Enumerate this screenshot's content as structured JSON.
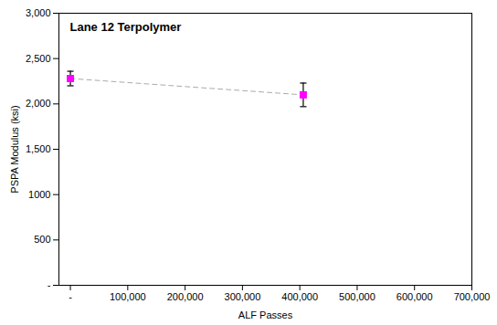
{
  "chart_data": {
    "type": "line",
    "title": "Lane 12 Terpolymer",
    "xlabel": "ALF Passes",
    "ylabel": "PSPA Modulus (ksi)",
    "x": [
      0,
      406000
    ],
    "values": [
      2280,
      2100
    ],
    "errors": [
      80,
      130
    ],
    "color": "#FF00FF",
    "marker": "square",
    "line_style": "dashed",
    "xlim": [
      -20000,
      700000
    ],
    "ylim": [
      0,
      3000
    ],
    "xticks": [
      {
        "value": 0,
        "label": "-"
      },
      {
        "value": 100000,
        "label": "100,000"
      },
      {
        "value": 200000,
        "label": "200,000"
      },
      {
        "value": 300000,
        "label": "300,000"
      },
      {
        "value": 400000,
        "label": "400,000"
      },
      {
        "value": 500000,
        "label": "500,000"
      },
      {
        "value": 600000,
        "label": "600,000"
      },
      {
        "value": 700000,
        "label": "700,000"
      }
    ],
    "yticks": [
      {
        "value": 0,
        "label": "-"
      },
      500,
      1000,
      {
        "value": 1500,
        "label": "1,500"
      },
      {
        "value": 2000,
        "label": "2,000"
      },
      {
        "value": 2500,
        "label": "2,500"
      },
      {
        "value": 3000,
        "label": "3,000"
      }
    ],
    "grid": false
  }
}
